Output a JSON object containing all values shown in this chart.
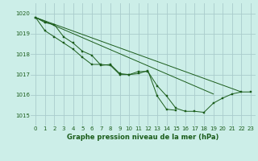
{
  "title": "Graphe pression niveau de la mer (hPa)",
  "bg_color": "#cceee8",
  "grid_color": "#aacccc",
  "line_color": "#1a5c1a",
  "marker_color": "#1a5c1a",
  "xlim": [
    -0.5,
    23.5
  ],
  "ylim": [
    1014.5,
    1020.5
  ],
  "yticks": [
    1015,
    1016,
    1017,
    1018,
    1019,
    1020
  ],
  "xticks": [
    0,
    1,
    2,
    3,
    4,
    5,
    6,
    7,
    8,
    9,
    10,
    11,
    12,
    13,
    14,
    15,
    16,
    17,
    18,
    19,
    20,
    21,
    22,
    23
  ],
  "series_with_markers": [
    [
      1019.8,
      1019.5,
      1019.4,
      1018.85,
      1018.55,
      1018.15,
      1017.95,
      1017.45,
      1017.5,
      1017.05,
      1017.0,
      1017.15,
      1017.15,
      1016.45,
      1015.95,
      1015.35,
      1015.2,
      1015.2,
      1015.15,
      1015.6,
      1015.85,
      1016.05,
      1016.15,
      1016.15
    ],
    [
      1019.8,
      null,
      null,
      1018.85,
      1018.6,
      1018.15,
      1017.85,
      1017.45,
      null,
      null,
      null,
      null,
      null,
      null,
      null,
      null,
      null,
      null,
      null,
      null,
      null,
      null,
      null,
      null
    ]
  ],
  "series_lines_only": [
    [
      1019.8,
      null,
      null,
      null,
      null,
      null,
      null,
      null,
      null,
      null,
      null,
      null,
      null,
      null,
      null,
      null,
      null,
      null,
      null,
      1015.9,
      1016.15,
      null,
      null,
      null
    ],
    [
      1019.8,
      null,
      null,
      null,
      null,
      null,
      null,
      null,
      null,
      null,
      null,
      null,
      null,
      null,
      null,
      null,
      null,
      null,
      null,
      1016.05,
      null,
      null,
      null,
      null
    ]
  ]
}
